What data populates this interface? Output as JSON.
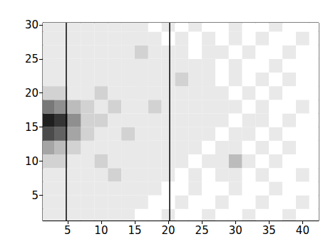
{
  "chart_data": {
    "type": "heatmap",
    "color": "#000000",
    "xlim": [
      1.3,
      42.4
    ],
    "ylim": [
      1.3,
      30.3
    ],
    "xticks": [
      5,
      10,
      15,
      20,
      25,
      30,
      35,
      40
    ],
    "yticks": [
      5,
      10,
      15,
      20,
      25,
      30
    ],
    "vlines": [
      4.8,
      20.2
    ],
    "cells": {
      "x": [
        2,
        4,
        6,
        8,
        10,
        12,
        14,
        16,
        18,
        20,
        22,
        24,
        26,
        28,
        30,
        32,
        34,
        36,
        38,
        40,
        42
      ],
      "y": [
        2,
        4,
        6,
        8,
        10,
        12,
        14,
        16,
        18,
        20,
        22,
        24,
        26,
        28,
        30
      ],
      "z": [
        [
          1,
          1,
          1,
          1,
          1,
          1,
          1,
          0,
          0,
          1,
          0,
          0,
          1,
          0,
          0,
          1,
          0,
          0,
          1,
          0,
          0
        ],
        [
          1,
          1,
          1,
          1,
          1,
          1,
          1,
          1,
          0,
          0,
          1,
          0,
          0,
          1,
          0,
          0,
          1,
          0,
          0,
          1,
          0
        ],
        [
          1,
          1,
          1,
          1,
          1,
          1,
          1,
          1,
          1,
          0,
          0,
          1,
          0,
          0,
          1,
          0,
          0,
          1,
          0,
          0,
          0
        ],
        [
          1,
          1,
          1,
          1,
          1,
          2,
          1,
          1,
          1,
          1,
          0,
          1,
          0,
          1,
          1,
          0,
          1,
          0,
          0,
          1,
          0
        ],
        [
          2,
          2,
          1,
          1,
          2,
          1,
          1,
          1,
          1,
          1,
          1,
          0,
          1,
          1,
          3,
          1,
          0,
          1,
          0,
          0,
          0
        ],
        [
          4,
          3,
          2,
          1,
          1,
          1,
          1,
          1,
          1,
          1,
          1,
          1,
          0,
          1,
          1,
          0,
          1,
          0,
          1,
          0,
          0
        ],
        [
          8,
          7,
          4,
          2,
          1,
          1,
          2,
          1,
          1,
          1,
          1,
          1,
          1,
          0,
          1,
          1,
          0,
          1,
          0,
          0,
          0
        ],
        [
          10,
          9,
          5,
          2,
          2,
          1,
          1,
          1,
          1,
          1,
          1,
          1,
          1,
          1,
          0,
          1,
          1,
          0,
          1,
          0,
          0
        ],
        [
          6,
          5,
          3,
          2,
          1,
          2,
          1,
          1,
          2,
          1,
          1,
          1,
          1,
          1,
          1,
          0,
          1,
          0,
          0,
          1,
          0
        ],
        [
          2,
          2,
          1,
          1,
          2,
          1,
          1,
          1,
          1,
          1,
          1,
          1,
          1,
          1,
          0,
          1,
          0,
          1,
          0,
          0,
          0
        ],
        [
          1,
          1,
          1,
          1,
          1,
          1,
          1,
          1,
          1,
          1,
          2,
          1,
          1,
          0,
          1,
          0,
          1,
          0,
          1,
          0,
          0
        ],
        [
          1,
          1,
          1,
          1,
          1,
          1,
          1,
          1,
          1,
          1,
          1,
          1,
          1,
          0,
          1,
          0,
          0,
          1,
          0,
          0,
          0
        ],
        [
          1,
          1,
          1,
          1,
          1,
          1,
          1,
          2,
          1,
          1,
          1,
          0,
          1,
          1,
          0,
          1,
          0,
          0,
          1,
          0,
          0
        ],
        [
          1,
          1,
          1,
          1,
          1,
          1,
          1,
          1,
          1,
          0,
          1,
          0,
          1,
          0,
          1,
          0,
          1,
          0,
          0,
          1,
          0
        ],
        [
          1,
          1,
          1,
          1,
          1,
          1,
          1,
          1,
          0,
          1,
          0,
          1,
          0,
          0,
          1,
          0,
          0,
          1,
          0,
          0,
          0
        ]
      ]
    }
  }
}
